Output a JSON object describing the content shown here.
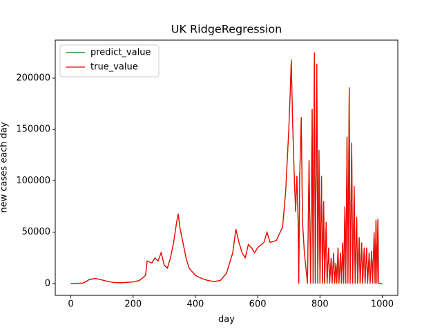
{
  "chart_data": {
    "type": "line",
    "title": "UK RidgeRegression",
    "x_label": "day",
    "y_label": "new cases each day",
    "x": [
      0,
      40,
      60,
      80,
      100,
      120,
      140,
      160,
      180,
      200,
      220,
      240,
      245,
      260,
      270,
      280,
      290,
      300,
      310,
      320,
      330,
      340,
      345,
      350,
      360,
      370,
      380,
      400,
      420,
      440,
      460,
      480,
      500,
      520,
      530,
      540,
      550,
      560,
      570,
      580,
      590,
      600,
      620,
      630,
      640,
      660,
      680,
      690,
      700,
      705,
      708,
      712,
      718,
      722,
      726,
      730,
      732,
      735,
      740,
      744,
      750,
      760,
      765,
      770,
      775,
      778,
      782,
      785,
      790,
      793,
      797,
      800,
      805,
      808,
      812,
      815,
      820,
      823,
      828,
      831,
      836,
      839,
      844,
      847,
      851,
      854,
      858,
      861,
      866,
      869,
      873,
      876,
      880,
      883,
      887,
      890,
      894,
      897,
      902,
      905,
      910,
      913,
      918,
      921,
      926,
      929,
      934,
      937,
      942,
      945,
      950,
      953,
      958,
      961,
      966,
      969,
      974,
      977,
      980,
      983,
      986,
      989,
      1000
    ],
    "series": [
      {
        "name": "predict_value",
        "color": "#008000",
        "values": [
          0,
          500,
          4000,
          5000,
          3500,
          2000,
          1000,
          700,
          1200,
          1500,
          3000,
          8000,
          22000,
          20000,
          25000,
          22000,
          30000,
          18000,
          15000,
          25000,
          40000,
          60000,
          68000,
          55000,
          40000,
          25000,
          15000,
          8000,
          5000,
          3000,
          2000,
          3000,
          10000,
          30000,
          53000,
          40000,
          30000,
          25000,
          38000,
          35000,
          30000,
          35000,
          40000,
          50000,
          40000,
          42000,
          55000,
          90000,
          150000,
          190000,
          218000,
          160000,
          100000,
          70000,
          105000,
          60000,
          0,
          105000,
          162000,
          60000,
          30000,
          0,
          120000,
          0,
          170000,
          0,
          225000,
          0,
          214000,
          0,
          130000,
          0,
          105000,
          0,
          80000,
          0,
          60000,
          0,
          35000,
          0,
          25000,
          0,
          30000,
          0,
          20000,
          0,
          35000,
          0,
          30000,
          0,
          40000,
          0,
          75000,
          0,
          143000,
          0,
          191000,
          0,
          137000,
          0,
          95000,
          0,
          65000,
          0,
          45000,
          0,
          40000,
          0,
          35000,
          0,
          35000,
          0,
          30000,
          0,
          32000,
          0,
          50000,
          0,
          62000,
          0,
          63000,
          0,
          0
        ]
      },
      {
        "name": "true_value",
        "color": "#ff0000",
        "values": [
          0,
          500,
          4000,
          5000,
          3500,
          2000,
          1000,
          700,
          1200,
          1500,
          3000,
          8000,
          22000,
          20000,
          25000,
          22000,
          30000,
          18000,
          15000,
          25000,
          40000,
          60000,
          68000,
          55000,
          40000,
          25000,
          15000,
          8000,
          5000,
          3000,
          2000,
          3000,
          10000,
          30000,
          53000,
          40000,
          30000,
          25000,
          38000,
          35000,
          30000,
          35000,
          40000,
          50000,
          40000,
          42000,
          55000,
          90000,
          150000,
          190000,
          218000,
          160000,
          100000,
          70000,
          105000,
          60000,
          0,
          105000,
          162000,
          60000,
          30000,
          0,
          120000,
          0,
          170000,
          0,
          225000,
          0,
          214000,
          0,
          130000,
          0,
          105000,
          0,
          80000,
          0,
          60000,
          0,
          35000,
          0,
          25000,
          0,
          30000,
          0,
          20000,
          0,
          35000,
          0,
          30000,
          0,
          40000,
          0,
          75000,
          0,
          143000,
          0,
          191000,
          0,
          137000,
          0,
          95000,
          0,
          65000,
          0,
          45000,
          0,
          40000,
          0,
          35000,
          0,
          35000,
          0,
          30000,
          0,
          32000,
          0,
          50000,
          0,
          62000,
          0,
          63000,
          0,
          0
        ]
      }
    ],
    "xlim": [
      -50,
      1050
    ],
    "ylim": [
      -11450,
      237000
    ],
    "xticks": [
      0,
      200,
      400,
      600,
      800,
      1000
    ],
    "yticks": [
      0,
      50000,
      100000,
      150000,
      200000
    ],
    "legend": "upper left"
  }
}
